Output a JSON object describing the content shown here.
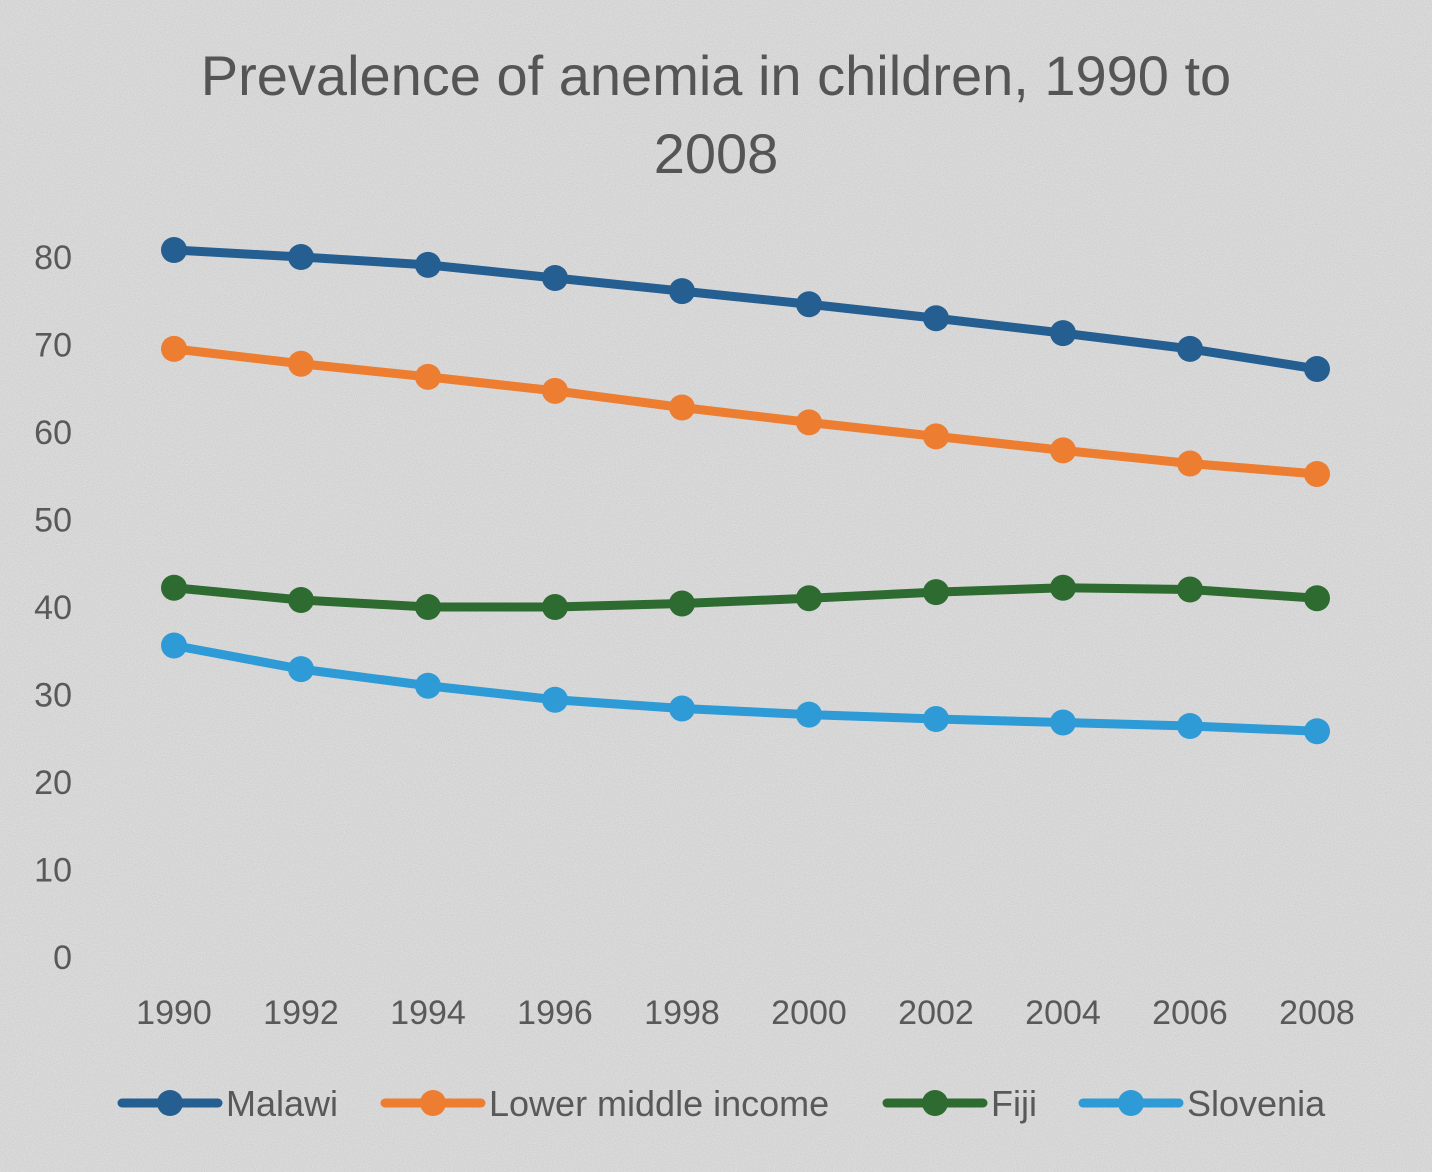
{
  "chart_data": {
    "type": "line",
    "title_lines": [
      "Prevalence of anemia in children, 1990 to",
      "2008"
    ],
    "x": [
      "1990",
      "1992",
      "1994",
      "1996",
      "1998",
      "2000",
      "2002",
      "2004",
      "2006",
      "2008"
    ],
    "ylim": [
      0,
      80
    ],
    "yticks": [
      "0",
      "10",
      "20",
      "30",
      "40",
      "50",
      "60",
      "70",
      "80"
    ],
    "grid": false,
    "legend_position": "bottom",
    "series": [
      {
        "name": "Malawi",
        "color": "#255e91",
        "values": [
          80.8,
          80.0,
          79.1,
          77.6,
          76.1,
          74.6,
          73.0,
          71.3,
          69.5,
          67.2
        ]
      },
      {
        "name": "Lower middle income",
        "color": "#ed7d31",
        "values": [
          69.5,
          67.8,
          66.3,
          64.7,
          62.8,
          61.1,
          59.5,
          57.9,
          56.4,
          55.2
        ]
      },
      {
        "name": "Fiji",
        "color": "#2e6b30",
        "values": [
          42.2,
          40.8,
          40.0,
          40.0,
          40.4,
          41.0,
          41.7,
          42.2,
          42.0,
          41.0
        ]
      },
      {
        "name": "Slovenia",
        "color": "#2e9bd6",
        "values": [
          35.6,
          32.9,
          31.0,
          29.4,
          28.4,
          27.7,
          27.2,
          26.8,
          26.4,
          25.8
        ]
      }
    ]
  }
}
